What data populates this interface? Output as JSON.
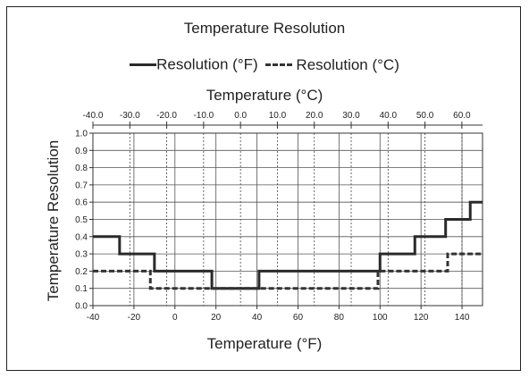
{
  "chart_data": {
    "type": "line",
    "title": "Temperature Resolution",
    "xlabel": "Temperature (°F)",
    "x2label": "Temperature (°C)",
    "ylabel": "Temperature Resolution",
    "xlim": [
      -40,
      150
    ],
    "x2lim": [
      -40,
      65.6
    ],
    "ylim": [
      0,
      1
    ],
    "grid": true,
    "legend": "top",
    "x_ticks": [
      -40,
      -20,
      0,
      20,
      40,
      60,
      80,
      100,
      120,
      140
    ],
    "x_tick_labels": [
      "-40",
      "-20",
      "0",
      "20",
      "40",
      "60",
      "80",
      "100",
      "120",
      "140"
    ],
    "x2_ticks": [
      -40,
      -30,
      -20,
      -10,
      0,
      10,
      20,
      30,
      40,
      50,
      60
    ],
    "x2_tick_labels": [
      "-40.0",
      "-30.0",
      "-20.0",
      "-10.0",
      "0.0",
      "10.0",
      "20.0",
      "30.0",
      "40.0",
      "50.0",
      "60.0"
    ],
    "y_ticks": [
      0,
      0.1,
      0.2,
      0.3,
      0.4,
      0.5,
      0.6,
      0.7,
      0.8,
      0.9,
      1.0
    ],
    "y_tick_labels": [
      "0.0",
      "0.1",
      "0.2",
      "0.3",
      "0.4",
      "0.5",
      "0.6",
      "0.7",
      "0.8",
      "0.9",
      "1.0"
    ],
    "series": [
      {
        "name": "Resolution (°F)",
        "style": "solid",
        "color": "#2a2a2a",
        "x": [
          -40,
          -27,
          -27,
          -10,
          -10,
          18,
          18,
          41,
          41,
          100,
          100,
          117,
          117,
          132,
          132,
          144,
          144,
          150
        ],
        "y": [
          0.4,
          0.4,
          0.3,
          0.3,
          0.2,
          0.2,
          0.1,
          0.1,
          0.2,
          0.2,
          0.3,
          0.3,
          0.4,
          0.4,
          0.5,
          0.5,
          0.6,
          0.6
        ]
      },
      {
        "name": "Resolution (°C)",
        "style": "dashed",
        "color": "#333333",
        "x": [
          -40,
          -12,
          -12,
          99,
          99,
          133,
          133,
          150
        ],
        "y": [
          0.2,
          0.2,
          0.1,
          0.1,
          0.2,
          0.2,
          0.3,
          0.3
        ]
      }
    ]
  }
}
